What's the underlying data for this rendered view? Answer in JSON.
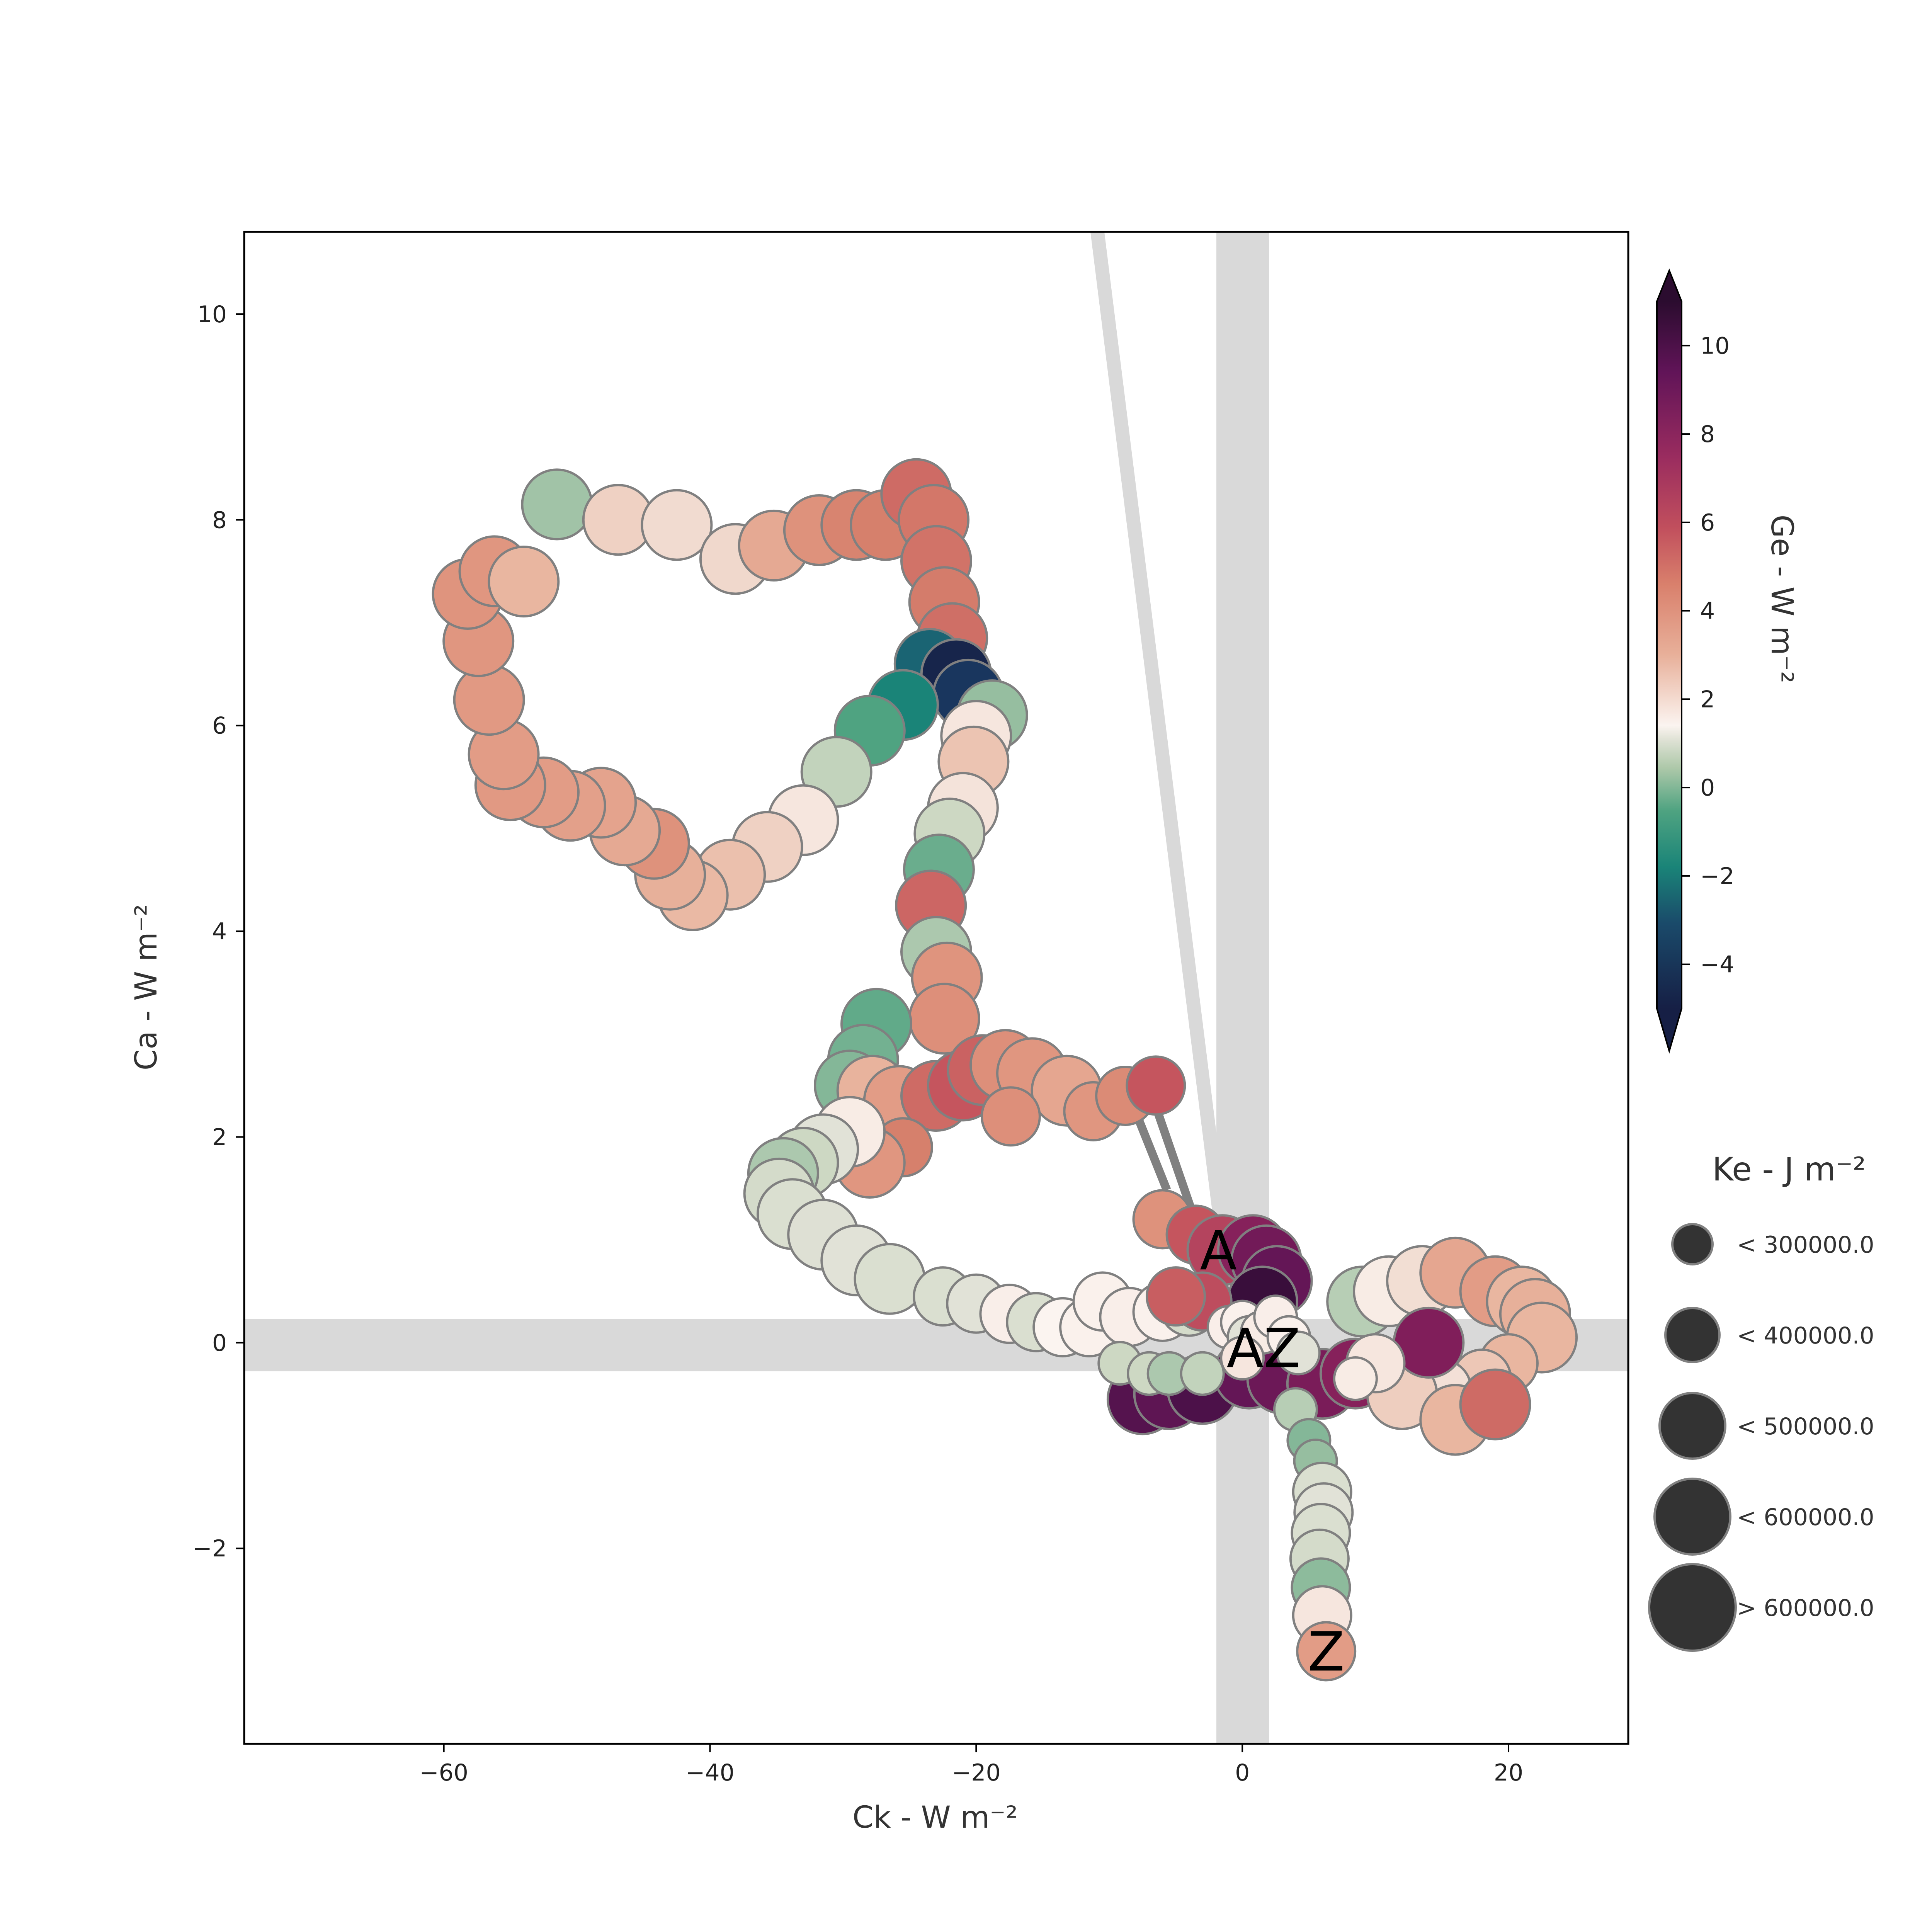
{
  "chart_data": {
    "type": "scatter",
    "xlabel": "Ck -  W m⁻²",
    "ylabel": "Ca -  W m⁻²",
    "xlim": [
      -75,
      29
    ],
    "ylim": [
      -3.9,
      10.8
    ],
    "xticks": [
      -60,
      -40,
      -20,
      0,
      20
    ],
    "yticks": [
      -2,
      0,
      2,
      4,
      6,
      8,
      10
    ],
    "xtick_labels": [
      "−60",
      "−40",
      "−20",
      "0",
      "20"
    ],
    "ytick_labels": [
      "−2",
      "0",
      "2",
      "4",
      "6",
      "8",
      "10"
    ],
    "grid": false,
    "colorbar": {
      "label": "Ge -  W m⁻²",
      "ticks": [
        10,
        8,
        6,
        4,
        2,
        0,
        -2,
        -4
      ],
      "tick_labels": [
        "10",
        "8",
        "6",
        "4",
        "2",
        "0",
        "−2",
        "−4"
      ],
      "range": [
        -5,
        11
      ]
    },
    "size_legend": {
      "title": "Ke -  J m⁻²",
      "entries": [
        "< 300000.0",
        "< 400000.0",
        "< 500000.0",
        "< 600000.0",
        "> 600000.0"
      ]
    },
    "markers": [
      {
        "text": "A",
        "x": -1.8,
        "y": 0.9
      },
      {
        "text": "Z",
        "x": 6.3,
        "y": -3.0
      },
      {
        "text": "AZ",
        "x": 1.6,
        "y": -0.05
      }
    ],
    "series": [
      {
        "values_note": "",
        "points": [
          [
            -51.5,
            8.15,
            -0.9,
            2
          ],
          [
            -46.9,
            8.0,
            1.2,
            2
          ],
          [
            -42.5,
            7.95,
            0.9,
            2
          ],
          [
            -38.1,
            7.62,
            1.0,
            2
          ],
          [
            -35.2,
            7.75,
            2.4,
            2
          ],
          [
            -31.8,
            7.9,
            3.2,
            2
          ],
          [
            -29.0,
            7.95,
            3.8,
            2
          ],
          [
            -26.8,
            7.95,
            4.0,
            2
          ],
          [
            -24.5,
            8.25,
            4.5,
            2
          ],
          [
            -23.2,
            8.0,
            4.2,
            2
          ],
          [
            -23.0,
            7.6,
            4.3,
            2
          ],
          [
            -22.4,
            7.2,
            4.1,
            2
          ],
          [
            -21.8,
            6.85,
            4.4,
            2
          ],
          [
            -23.5,
            6.6,
            -3.0,
            2
          ],
          [
            -21.5,
            6.5,
            -4.8,
            2
          ],
          [
            -20.6,
            6.3,
            -4.2,
            2
          ],
          [
            -18.8,
            6.1,
            -1.0,
            2
          ],
          [
            -25.5,
            6.2,
            -2.5,
            2
          ],
          [
            -28.0,
            5.95,
            -1.8,
            2
          ],
          [
            -30.5,
            5.55,
            -0.6,
            2
          ],
          [
            -33.0,
            5.08,
            0.5,
            2
          ],
          [
            -35.7,
            4.82,
            1.2,
            2
          ],
          [
            -38.5,
            4.55,
            1.7,
            2
          ],
          [
            -41.3,
            4.35,
            1.9,
            2
          ],
          [
            -43.0,
            4.55,
            2.2,
            2
          ],
          [
            -44.2,
            4.85,
            3.2,
            2
          ],
          [
            -46.4,
            4.98,
            2.4,
            2
          ],
          [
            -48.2,
            5.25,
            2.6,
            2
          ],
          [
            -50.5,
            5.22,
            2.7,
            2
          ],
          [
            -52.5,
            5.35,
            2.8,
            2
          ],
          [
            -55.0,
            5.42,
            2.9,
            2
          ],
          [
            -55.5,
            5.72,
            2.8,
            2
          ],
          [
            -56.6,
            6.25,
            2.9,
            2
          ],
          [
            -57.4,
            6.82,
            3.0,
            2
          ],
          [
            -58.2,
            7.28,
            3.1,
            2
          ],
          [
            -56.2,
            7.5,
            3.0,
            2
          ],
          [
            -54.0,
            7.4,
            2.0,
            2
          ],
          [
            -20.0,
            5.9,
            0.5,
            2
          ],
          [
            -20.2,
            5.65,
            1.6,
            2
          ],
          [
            -21.0,
            5.2,
            0.6,
            2
          ],
          [
            -22.0,
            4.95,
            -0.5,
            2
          ],
          [
            -22.8,
            4.6,
            -1.5,
            2
          ],
          [
            -23.4,
            4.25,
            4.6,
            2
          ],
          [
            -23.0,
            3.8,
            -0.8,
            2
          ],
          [
            -22.2,
            3.55,
            3.1,
            2
          ],
          [
            -22.4,
            3.15,
            3.3,
            2
          ],
          [
            -27.5,
            3.1,
            -1.6,
            2
          ],
          [
            -28.5,
            2.75,
            -1.4,
            2
          ],
          [
            -29.5,
            2.5,
            -1.2,
            2
          ],
          [
            -27.8,
            2.45,
            2.1,
            2
          ],
          [
            -25.8,
            2.35,
            2.8,
            2
          ],
          [
            -23.0,
            2.4,
            4.5,
            2
          ],
          [
            -21.0,
            2.5,
            5.0,
            2
          ],
          [
            -19.5,
            2.65,
            4.7,
            2
          ],
          [
            -17.8,
            2.7,
            3.3,
            2
          ],
          [
            -15.8,
            2.62,
            3.0,
            2
          ],
          [
            -13.2,
            2.45,
            2.5,
            2
          ],
          [
            -11.2,
            2.25,
            3.0,
            1
          ],
          [
            -8.8,
            2.4,
            3.5,
            1
          ],
          [
            -6.5,
            2.5,
            5.0,
            1
          ],
          [
            -17.4,
            2.2,
            3.3,
            1
          ],
          [
            -25.5,
            1.9,
            4.0,
            1
          ],
          [
            -28.0,
            1.75,
            3.0,
            2
          ],
          [
            -29.5,
            2.05,
            0.3,
            2
          ],
          [
            -31.5,
            1.88,
            -0.2,
            2
          ],
          [
            -33.0,
            1.75,
            -0.5,
            2
          ],
          [
            -34.5,
            1.65,
            -0.8,
            2
          ],
          [
            -34.8,
            1.45,
            -0.4,
            2
          ],
          [
            -33.8,
            1.25,
            -0.3,
            2
          ],
          [
            -31.5,
            1.05,
            -0.25,
            2
          ],
          [
            -29.0,
            0.8,
            -0.2,
            2
          ],
          [
            -26.5,
            0.62,
            -0.3,
            2
          ],
          [
            -22.5,
            0.45,
            -0.3,
            1
          ],
          [
            -20.0,
            0.38,
            -0.2,
            1
          ],
          [
            -17.5,
            0.28,
            0.2,
            1
          ],
          [
            -15.5,
            0.2,
            -0.3,
            1
          ],
          [
            -13.5,
            0.15,
            0.0,
            1
          ],
          [
            -11.5,
            0.15,
            0.1,
            1
          ],
          [
            -10.5,
            0.4,
            0.1,
            1
          ],
          [
            -8.5,
            0.25,
            0.2,
            1
          ],
          [
            -6.0,
            0.3,
            0.1,
            1
          ],
          [
            -4.0,
            0.35,
            -0.4,
            1
          ],
          [
            -6.0,
            1.2,
            3.2,
            1
          ],
          [
            -3.5,
            1.05,
            5.0,
            1
          ],
          [
            -1.5,
            0.9,
            6.0,
            2
          ],
          [
            0.8,
            0.9,
            7.8,
            2
          ],
          [
            1.8,
            0.8,
            8.5,
            2
          ],
          [
            2.6,
            0.6,
            9.0,
            2
          ],
          [
            1.5,
            0.4,
            10.5,
            2
          ],
          [
            -3.0,
            0.4,
            5.5,
            1
          ],
          [
            -5.0,
            0.45,
            4.8,
            1
          ],
          [
            -7.5,
            -0.55,
            9.5,
            2
          ],
          [
            -5.5,
            -0.5,
            9.2,
            2
          ],
          [
            -3.0,
            -0.45,
            9.8,
            2
          ],
          [
            0.5,
            -0.3,
            9.0,
            2
          ],
          [
            3.0,
            -0.35,
            8.7,
            2
          ],
          [
            6.0,
            -0.4,
            8.2,
            2
          ],
          [
            8.5,
            -0.3,
            7.8,
            2
          ],
          [
            -9.2,
            -0.2,
            -0.5,
            0
          ],
          [
            -7.0,
            -0.3,
            -0.5,
            0
          ],
          [
            -5.5,
            -0.3,
            -0.8,
            0
          ],
          [
            -3.0,
            -0.3,
            -0.6,
            0
          ],
          [
            4.0,
            -0.65,
            -0.7,
            0
          ],
          [
            5.0,
            -0.95,
            -1.2,
            0
          ],
          [
            5.5,
            -1.15,
            -1.0,
            0
          ],
          [
            6.0,
            -1.45,
            -0.3,
            1
          ],
          [
            6.1,
            -1.65,
            -0.2,
            1
          ],
          [
            5.9,
            -1.85,
            -0.3,
            1
          ],
          [
            5.8,
            -2.1,
            -0.4,
            1
          ],
          [
            5.9,
            -2.38,
            -1.1,
            1
          ],
          [
            6.0,
            -2.65,
            0.5,
            1
          ],
          [
            6.3,
            -3.0,
            2.8,
            1
          ],
          [
            9.0,
            0.4,
            -0.7,
            2
          ],
          [
            11.0,
            0.5,
            0.3,
            2
          ],
          [
            13.5,
            0.6,
            0.8,
            2
          ],
          [
            16.0,
            0.68,
            2.5,
            2
          ],
          [
            19.0,
            0.5,
            2.8,
            2
          ],
          [
            21.0,
            0.4,
            2.0,
            2
          ],
          [
            22.0,
            0.28,
            2.2,
            2
          ],
          [
            22.5,
            0.05,
            2.0,
            2
          ],
          [
            20.0,
            -0.2,
            2.0,
            1
          ],
          [
            18.0,
            -0.35,
            1.5,
            1
          ],
          [
            15.0,
            -0.45,
            0.7,
            1
          ],
          [
            12.0,
            -0.5,
            1.3,
            2
          ],
          [
            16.0,
            -0.75,
            2.0,
            2
          ],
          [
            19.0,
            -0.6,
            4.5,
            2
          ],
          [
            14.0,
            0.0,
            8.0,
            2
          ],
          [
            10.0,
            -0.2,
            0.5,
            1
          ],
          [
            8.5,
            -0.35,
            0.3,
            0
          ],
          [
            -1.0,
            0.15,
            0.2,
            0
          ],
          [
            0.0,
            0.2,
            0.1,
            0
          ],
          [
            0.5,
            0.05,
            -0.2,
            0
          ],
          [
            1.5,
            0.1,
            0.3,
            0
          ],
          [
            2.5,
            0.25,
            0.2,
            0
          ],
          [
            3.5,
            0.05,
            0.1,
            0
          ],
          [
            4.2,
            -0.1,
            -0.2,
            0
          ],
          [
            0.0,
            -0.15,
            0.5,
            0
          ]
        ]
      }
    ]
  },
  "colors": {
    "shade": "#d9d9d9",
    "marker_edge": "#808080",
    "legend_bubble": "#333333"
  }
}
